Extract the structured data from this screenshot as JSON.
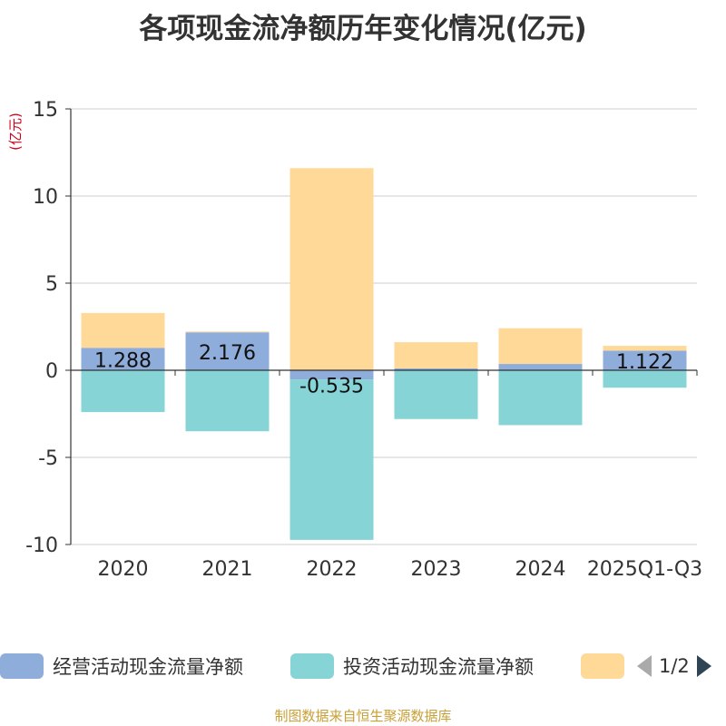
{
  "title": "各项现金流净额历年变化情况(亿元)",
  "source": "制图数据来自恒生聚源数据库",
  "legend_page": "1/2",
  "colors": {
    "operating": "#8eaddb",
    "investing": "#87d4d6",
    "third": "#fed998",
    "axis": "#333333",
    "grid": "#cccccc",
    "unit": "#d0021b"
  },
  "chart_data": {
    "type": "bar",
    "stacked": true,
    "title": "各项现金流净额历年变化情况(亿元)",
    "ylabel": "(亿元)",
    "xlabel": "",
    "ylim": [
      -10,
      15
    ],
    "yticks": [
      15,
      10,
      5,
      0,
      -5,
      -10
    ],
    "grid": true,
    "legend_position": "bottom",
    "categories": [
      "2020",
      "2021",
      "2022",
      "2023",
      "2024",
      "2025Q1-Q3"
    ],
    "series": [
      {
        "name": "经营活动现金流量净额",
        "color": "#8eaddb",
        "values": [
          1.288,
          2.176,
          -0.535,
          0.11,
          0.362,
          1.122
        ],
        "labels": [
          "1.288",
          "2.176",
          "-0.535",
          "",
          "",
          "1.122"
        ]
      },
      {
        "name": "投资活动现金流量净额",
        "color": "#87d4d6",
        "values": [
          -2.4,
          -3.5,
          -9.2,
          -2.8,
          -3.15,
          -1.0
        ]
      },
      {
        "name": "",
        "color": "#fed998",
        "values": [
          2.0,
          0.05,
          11.6,
          1.5,
          2.05,
          0.28
        ]
      }
    ]
  }
}
